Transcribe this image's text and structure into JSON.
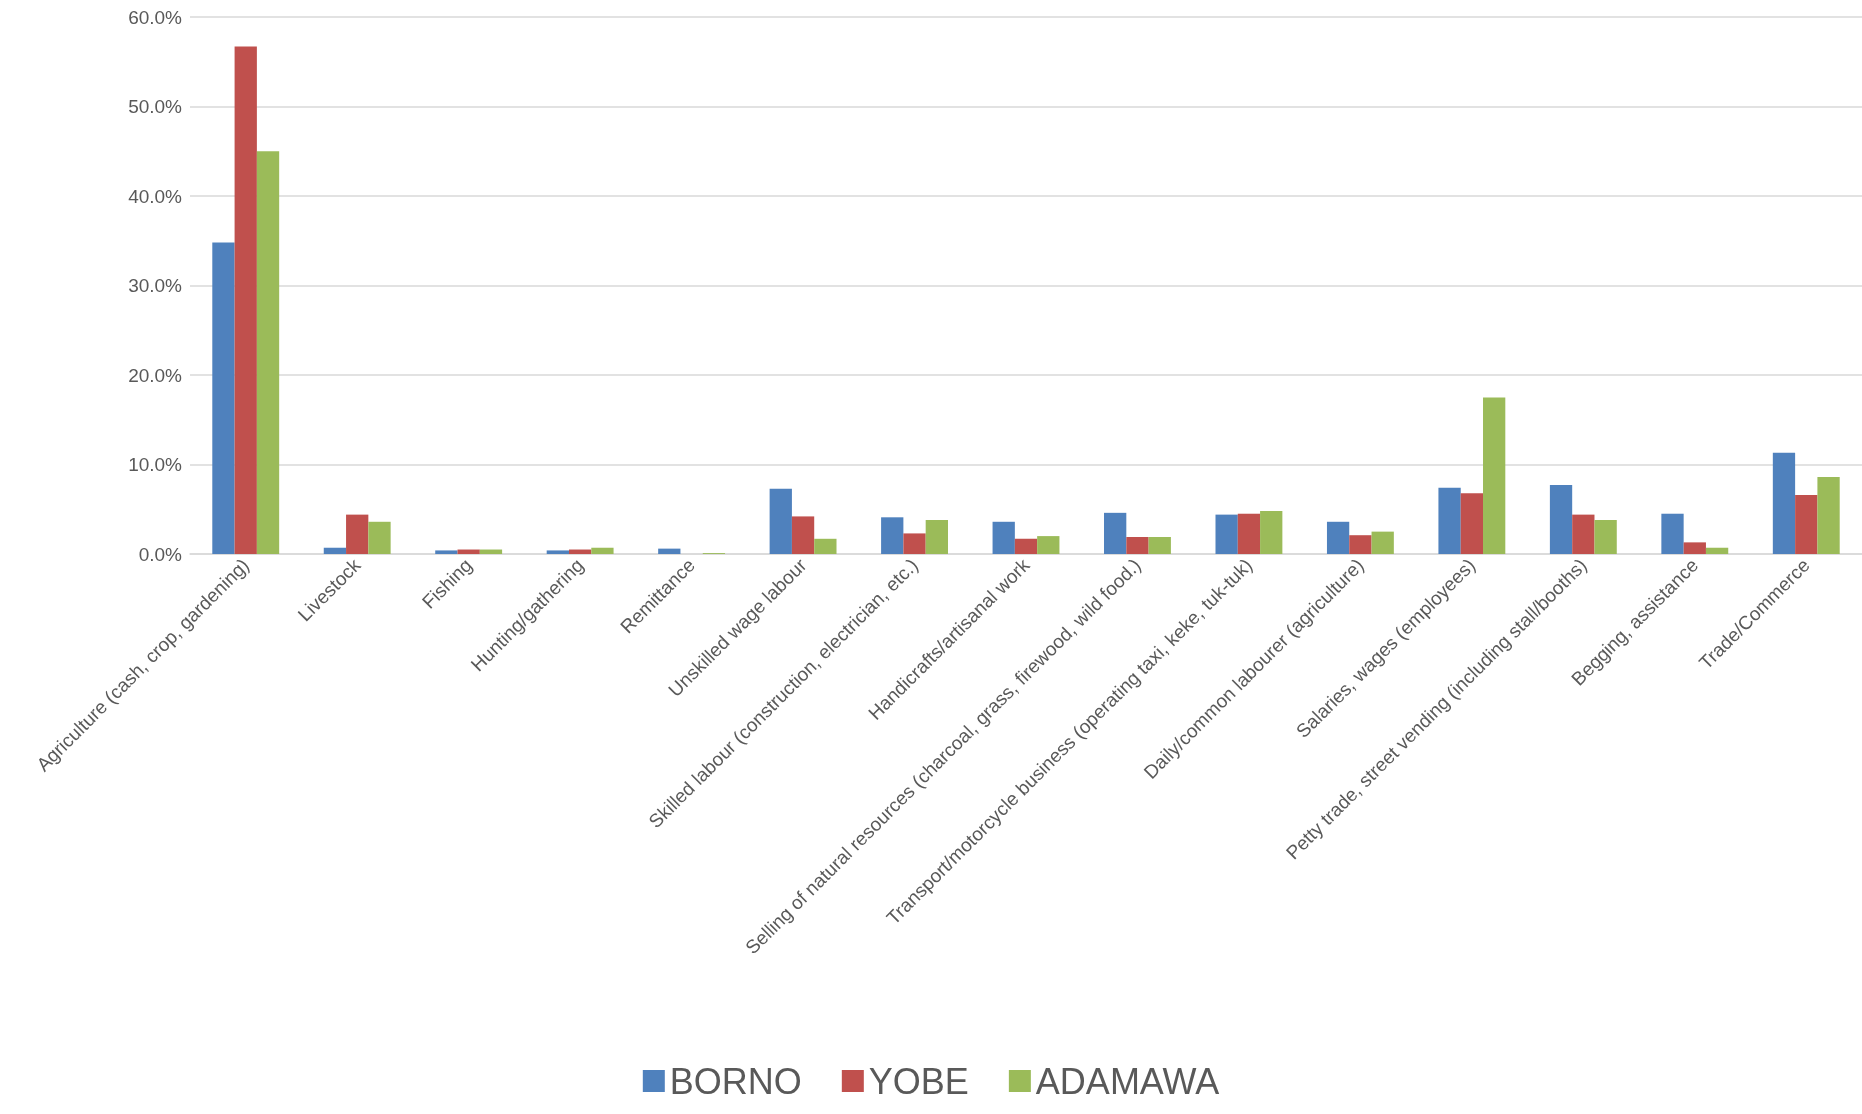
{
  "chart_data": {
    "type": "bar",
    "categories": [
      "Agriculture (cash, crop, gardening)",
      "Livestock",
      "Fishing",
      "Hunting/gathering",
      "Remittance",
      "Unskilled wage labour",
      "Skilled labour (construction, electrician, etc.)",
      "Handicrafts/artisanal work",
      "Selling of natural resources (charcoal, grass, firewood, wild food.)",
      "Transport/motorcycle business (operating taxi, keke, tuk-tuk)",
      "Daily/common labourer (agriculture)",
      "Salaries, wages (employees)",
      "Petty trade, street vending (including stall/booths)",
      "Begging, assistance",
      "Trade/Commerce"
    ],
    "series": [
      {
        "name": "BORNO",
        "color": "#4f81bd",
        "values": [
          34.8,
          0.7,
          0.4,
          0.4,
          0.6,
          7.3,
          4.1,
          3.6,
          4.6,
          4.4,
          3.6,
          7.4,
          7.7,
          4.5,
          11.3
        ]
      },
      {
        "name": "YOBE",
        "color": "#c0504d",
        "values": [
          56.7,
          4.4,
          0.5,
          0.5,
          0.0,
          4.2,
          2.3,
          1.7,
          1.9,
          4.5,
          2.1,
          6.8,
          4.4,
          1.3,
          6.6
        ]
      },
      {
        "name": "ADAMAWA",
        "color": "#9bbb59",
        "values": [
          45.0,
          3.6,
          0.5,
          0.7,
          0.1,
          1.7,
          3.8,
          2.0,
          1.9,
          4.8,
          2.5,
          17.5,
          3.8,
          0.7,
          8.6
        ]
      }
    ],
    "ylim": [
      0,
      60
    ],
    "yticks": [
      {
        "value": 0,
        "label": "0.0%"
      },
      {
        "value": 10,
        "label": "10.0%"
      },
      {
        "value": 20,
        "label": "20.0%"
      },
      {
        "value": 30,
        "label": "30.0%"
      },
      {
        "value": 40,
        "label": "40.0%"
      },
      {
        "value": 50,
        "label": "50.0%"
      },
      {
        "value": 60,
        "label": "60.0%"
      }
    ],
    "grid": "y",
    "legend": "bottom"
  }
}
